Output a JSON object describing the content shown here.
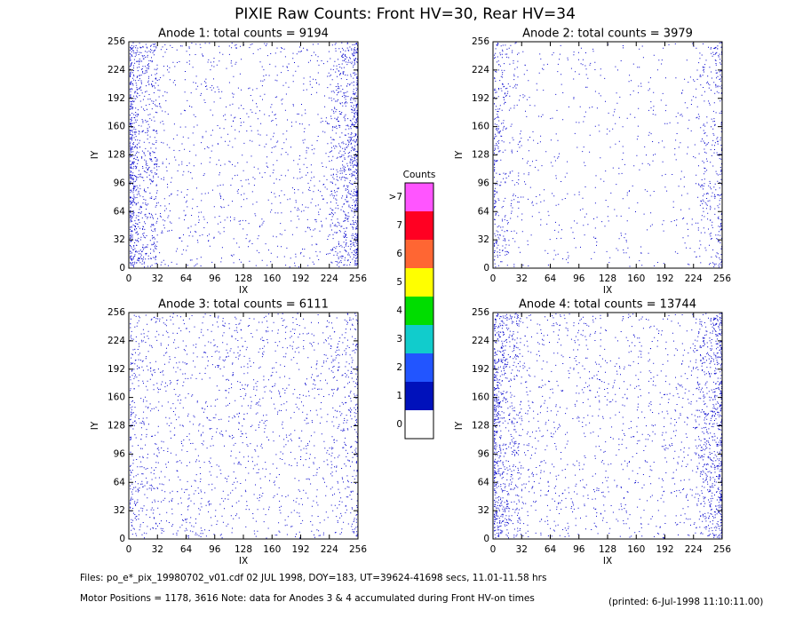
{
  "title": "PIXIE Raw Counts:  Front HV=30, Rear HV=34",
  "chart_data": [
    {
      "type": "heatmap",
      "title": "Anode 1: total counts = 9194",
      "xlabel": "IX",
      "ylabel": "IY",
      "xlim": [
        0,
        256
      ],
      "ylim": [
        0,
        256
      ],
      "xticks": [
        0,
        32,
        64,
        96,
        128,
        160,
        192,
        224,
        256
      ],
      "yticks": [
        0,
        32,
        64,
        96,
        128,
        160,
        192,
        224,
        256
      ]
    },
    {
      "type": "heatmap",
      "title": "Anode 2: total counts = 3979",
      "xlabel": "IX",
      "ylabel": "IY",
      "xlim": [
        0,
        256
      ],
      "ylim": [
        0,
        256
      ],
      "xticks": [
        0,
        32,
        64,
        96,
        128,
        160,
        192,
        224,
        256
      ],
      "yticks": [
        0,
        32,
        64,
        96,
        128,
        160,
        192,
        224,
        256
      ]
    },
    {
      "type": "heatmap",
      "title": "Anode 3: total counts = 6111",
      "xlabel": "IX",
      "ylabel": "IY",
      "xlim": [
        0,
        256
      ],
      "ylim": [
        0,
        256
      ],
      "xticks": [
        0,
        32,
        64,
        96,
        128,
        160,
        192,
        224,
        256
      ],
      "yticks": [
        0,
        32,
        64,
        96,
        128,
        160,
        192,
        224,
        256
      ]
    },
    {
      "type": "heatmap",
      "title": "Anode 4: total counts = 13744",
      "xlabel": "IX",
      "ylabel": "IY",
      "xlim": [
        0,
        256
      ],
      "ylim": [
        0,
        256
      ],
      "xticks": [
        0,
        32,
        64,
        96,
        128,
        160,
        192,
        224,
        256
      ],
      "yticks": [
        0,
        32,
        64,
        96,
        128,
        160,
        192,
        224,
        256
      ]
    }
  ],
  "colorbar": {
    "title": "Counts",
    "labels": [
      ">7",
      "7",
      "6",
      "5",
      "4",
      "3",
      "2",
      "1",
      "0"
    ],
    "colors": [
      "#ff55ff",
      "#ff0022",
      "#ff6633",
      "#ffff00",
      "#00dd00",
      "#11cccc",
      "#2255ff",
      "#0011bb",
      "#ffffff"
    ]
  },
  "footer": {
    "files": "Files: po_e*_pix_19980702_v01.cdf    02 JUL 1998, DOY=183, UT=39624-41698 secs, 11.01-11.58 hrs",
    "motor": "Motor Positions = 1178, 3616    Note: data for Anodes 3 & 4 accumulated during Front HV-on times",
    "printed": "(printed:  6-Jul-1998 11:10:11.00)"
  }
}
